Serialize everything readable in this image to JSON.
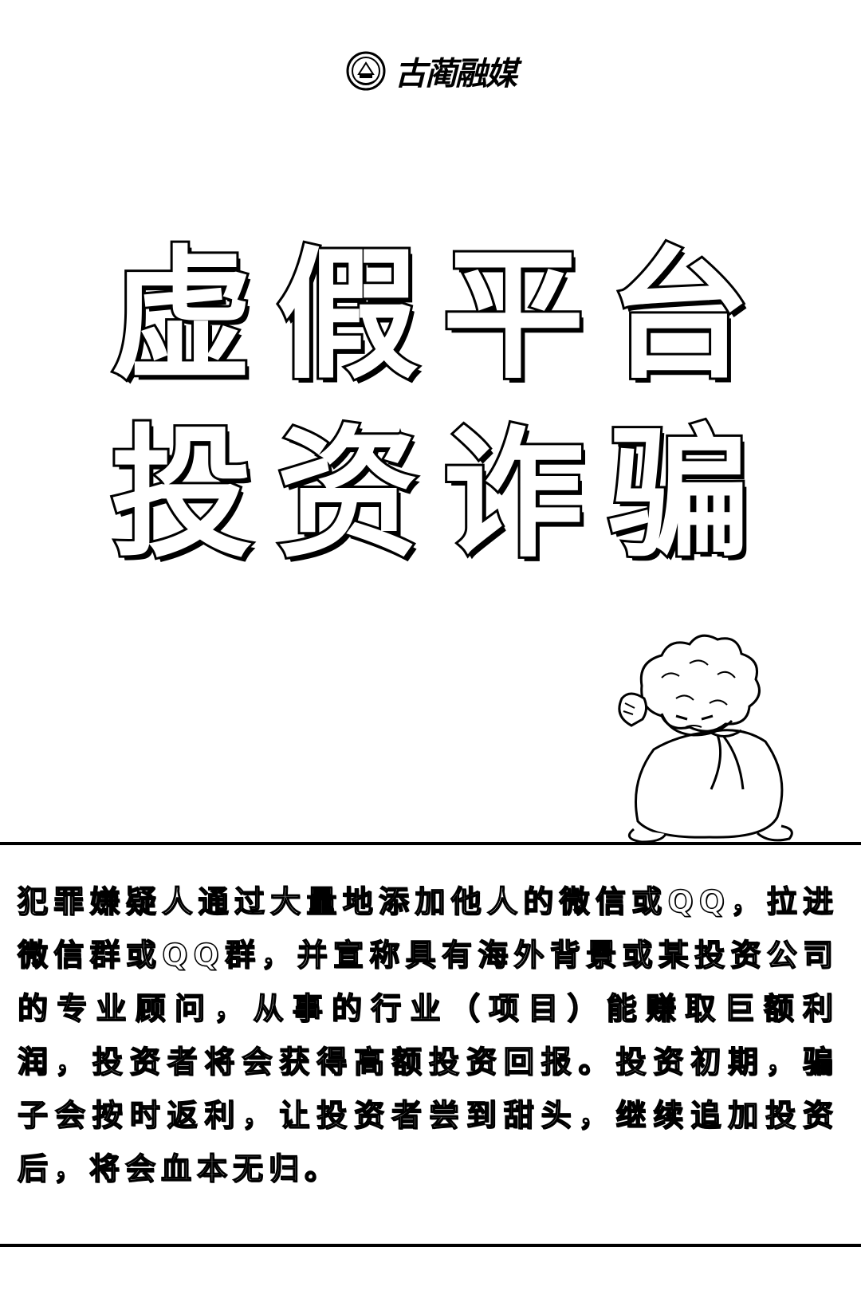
{
  "logo": {
    "icon": "emblem-icon",
    "text": "古蔺融媒"
  },
  "title": {
    "line1": "虚假平台",
    "line2": "投资诈骗"
  },
  "illustration": {
    "icon": "worried-elderly-person-icon"
  },
  "description": "犯罪嫌疑人通过大量地添加他人的微信或QQ，拉进微信群或QQ群，并宣称具有海外背景或某投资公司的专业顾问，从事的行业（项目）能赚取巨额利润，投资者将会获得高额投资回报。投资初期，骗子会按时返利，让投资者尝到甜头，继续追加投资后，将会血本无归。",
  "colors": {
    "background": "#ffffff",
    "ink": "#000000"
  }
}
